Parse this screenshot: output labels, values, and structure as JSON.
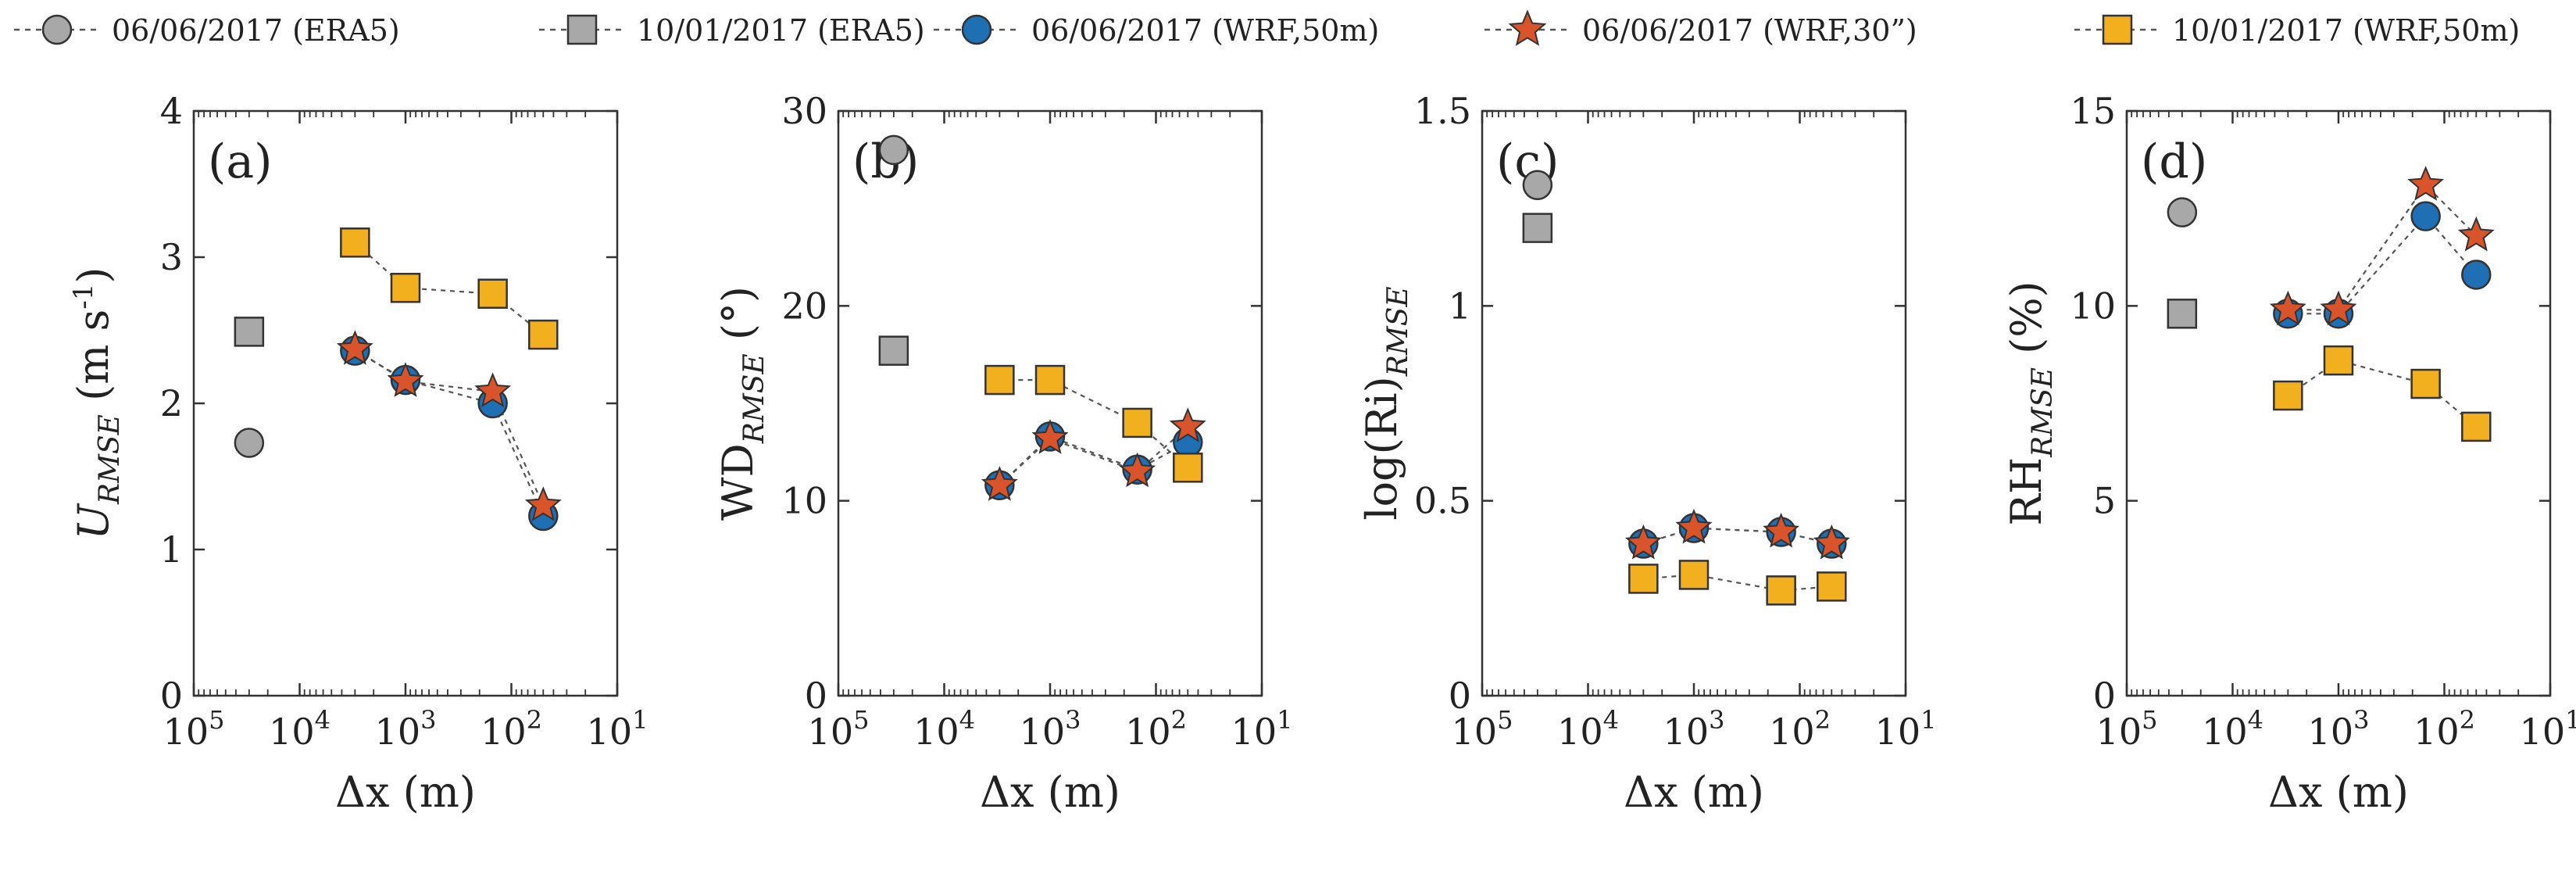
{
  "colors": {
    "era5": "#a8a8a8",
    "wrf_blue": "#1f6fb4",
    "wrf_star": "#d9542a",
    "wrf_yellow": "#f2b01e"
  },
  "legend": [
    {
      "label": "06/06/2017 (ERA5)",
      "marker": "circle",
      "color": "#a8a8a8"
    },
    {
      "label": "10/01/2017 (ERA5)",
      "marker": "square",
      "color": "#a8a8a8"
    },
    {
      "label": "06/06/2017 (WRF,50m)",
      "marker": "circle",
      "color": "#1f6fb4"
    },
    {
      "label": "06/06/2017 (WRF,30”)",
      "marker": "star",
      "color": "#d9542a"
    },
    {
      "label": "10/01/2017 (WRF,50m)",
      "marker": "square",
      "color": "#f2b01e"
    }
  ],
  "chart_data": [
    {
      "type": "scatter",
      "panel_label": "(a)",
      "ylabel": "U_RMSE (m s^-1)",
      "xlabel": "Δx (m)",
      "x_scale": "log",
      "x_reversed": true,
      "xlim": [
        100000,
        10
      ],
      "ylim": [
        0,
        4
      ],
      "xtick_labels": [
        "10^5",
        "10^4",
        "10^3",
        "10^2",
        "10^1"
      ],
      "ytick_labels": [
        "0",
        "1",
        "2",
        "3",
        "4"
      ],
      "yticks": [
        0,
        1,
        2,
        3,
        4
      ],
      "series": [
        {
          "name": "06/06/2017 (ERA5)",
          "x": [
            30000
          ],
          "y": [
            1.73
          ]
        },
        {
          "name": "10/01/2017 (ERA5)",
          "x": [
            30000
          ],
          "y": [
            2.49
          ]
        },
        {
          "name": "06/06/2017 (WRF,50m)",
          "x": [
            3000,
            1000,
            150,
            50
          ],
          "y": [
            2.36,
            2.16,
            2.0,
            1.23
          ]
        },
        {
          "name": "06/06/2017 (WRF,30”)",
          "x": [
            3000,
            1000,
            150,
            50
          ],
          "y": [
            2.37,
            2.15,
            2.08,
            1.3
          ]
        },
        {
          "name": "10/01/2017 (WRF,50m)",
          "x": [
            3000,
            1000,
            150,
            50
          ],
          "y": [
            3.1,
            2.79,
            2.75,
            2.47
          ]
        }
      ]
    },
    {
      "type": "scatter",
      "panel_label": "(b)",
      "ylabel": "WD_RMSE (°)",
      "xlabel": "Δx (m)",
      "x_scale": "log",
      "x_reversed": true,
      "xlim": [
        100000,
        10
      ],
      "ylim": [
        0,
        30
      ],
      "xtick_labels": [
        "10^5",
        "10^4",
        "10^3",
        "10^2",
        "10^1"
      ],
      "ytick_labels": [
        "0",
        "10",
        "20",
        "30"
      ],
      "yticks": [
        0,
        10,
        20,
        30
      ],
      "series": [
        {
          "name": "06/06/2017 (ERA5)",
          "x": [
            30000
          ],
          "y": [
            28.0
          ]
        },
        {
          "name": "10/01/2017 (ERA5)",
          "x": [
            30000
          ],
          "y": [
            17.7
          ]
        },
        {
          "name": "06/06/2017 (WRF,50m)",
          "x": [
            3000,
            1000,
            150,
            50
          ],
          "y": [
            10.8,
            13.3,
            11.6,
            13.0
          ]
        },
        {
          "name": "06/06/2017 (WRF,30”)",
          "x": [
            3000,
            1000,
            150,
            50
          ],
          "y": [
            10.8,
            13.2,
            11.5,
            13.8
          ]
        },
        {
          "name": "10/01/2017 (WRF,50m)",
          "x": [
            3000,
            1000,
            150,
            50
          ],
          "y": [
            16.2,
            16.2,
            14.0,
            11.7
          ]
        }
      ]
    },
    {
      "type": "scatter",
      "panel_label": "(c)",
      "ylabel": "log(Ri)_RMSE",
      "xlabel": "Δx (m)",
      "x_scale": "log",
      "x_reversed": true,
      "xlim": [
        100000,
        10
      ],
      "ylim": [
        0,
        1.5
      ],
      "xtick_labels": [
        "10^5",
        "10^4",
        "10^3",
        "10^2",
        "10^1"
      ],
      "ytick_labels": [
        "0",
        "0.5",
        "1",
        "1.5"
      ],
      "yticks": [
        0,
        0.5,
        1,
        1.5
      ],
      "series": [
        {
          "name": "06/06/2017 (ERA5)",
          "x": [
            30000
          ],
          "y": [
            1.31
          ]
        },
        {
          "name": "10/01/2017 (ERA5)",
          "x": [
            30000
          ],
          "y": [
            1.2
          ]
        },
        {
          "name": "06/06/2017 (WRF,50m)",
          "x": [
            3000,
            1000,
            150,
            50
          ],
          "y": [
            0.39,
            0.43,
            0.42,
            0.39
          ]
        },
        {
          "name": "06/06/2017 (WRF,30”)",
          "x": [
            3000,
            1000,
            150,
            50
          ],
          "y": [
            0.39,
            0.43,
            0.42,
            0.39
          ]
        },
        {
          "name": "10/01/2017 (WRF,50m)",
          "x": [
            3000,
            1000,
            150,
            50
          ],
          "y": [
            0.3,
            0.31,
            0.27,
            0.28
          ]
        }
      ]
    },
    {
      "type": "scatter",
      "panel_label": "(d)",
      "ylabel": "RH_RMSE (%)",
      "xlabel": "Δx (m)",
      "x_scale": "log",
      "x_reversed": true,
      "xlim": [
        100000,
        10
      ],
      "ylim": [
        0,
        15
      ],
      "xtick_labels": [
        "10^5",
        "10^4",
        "10^3",
        "10^2",
        "10^1"
      ],
      "ytick_labels": [
        "0",
        "5",
        "10",
        "15"
      ],
      "yticks": [
        0,
        5,
        10,
        15
      ],
      "series": [
        {
          "name": "06/06/2017 (ERA5)",
          "x": [
            30000
          ],
          "y": [
            12.4
          ]
        },
        {
          "name": "10/01/2017 (ERA5)",
          "x": [
            30000
          ],
          "y": [
            9.8
          ]
        },
        {
          "name": "06/06/2017 (WRF,50m)",
          "x": [
            3000,
            1000,
            150,
            50
          ],
          "y": [
            9.8,
            9.8,
            12.3,
            10.8
          ]
        },
        {
          "name": "06/06/2017 (WRF,30”)",
          "x": [
            3000,
            1000,
            150,
            50
          ],
          "y": [
            9.9,
            9.9,
            13.1,
            11.8
          ]
        },
        {
          "name": "10/01/2017 (WRF,50m)",
          "x": [
            3000,
            1000,
            150,
            50
          ],
          "y": [
            7.7,
            8.6,
            8.0,
            6.9
          ]
        }
      ]
    }
  ]
}
